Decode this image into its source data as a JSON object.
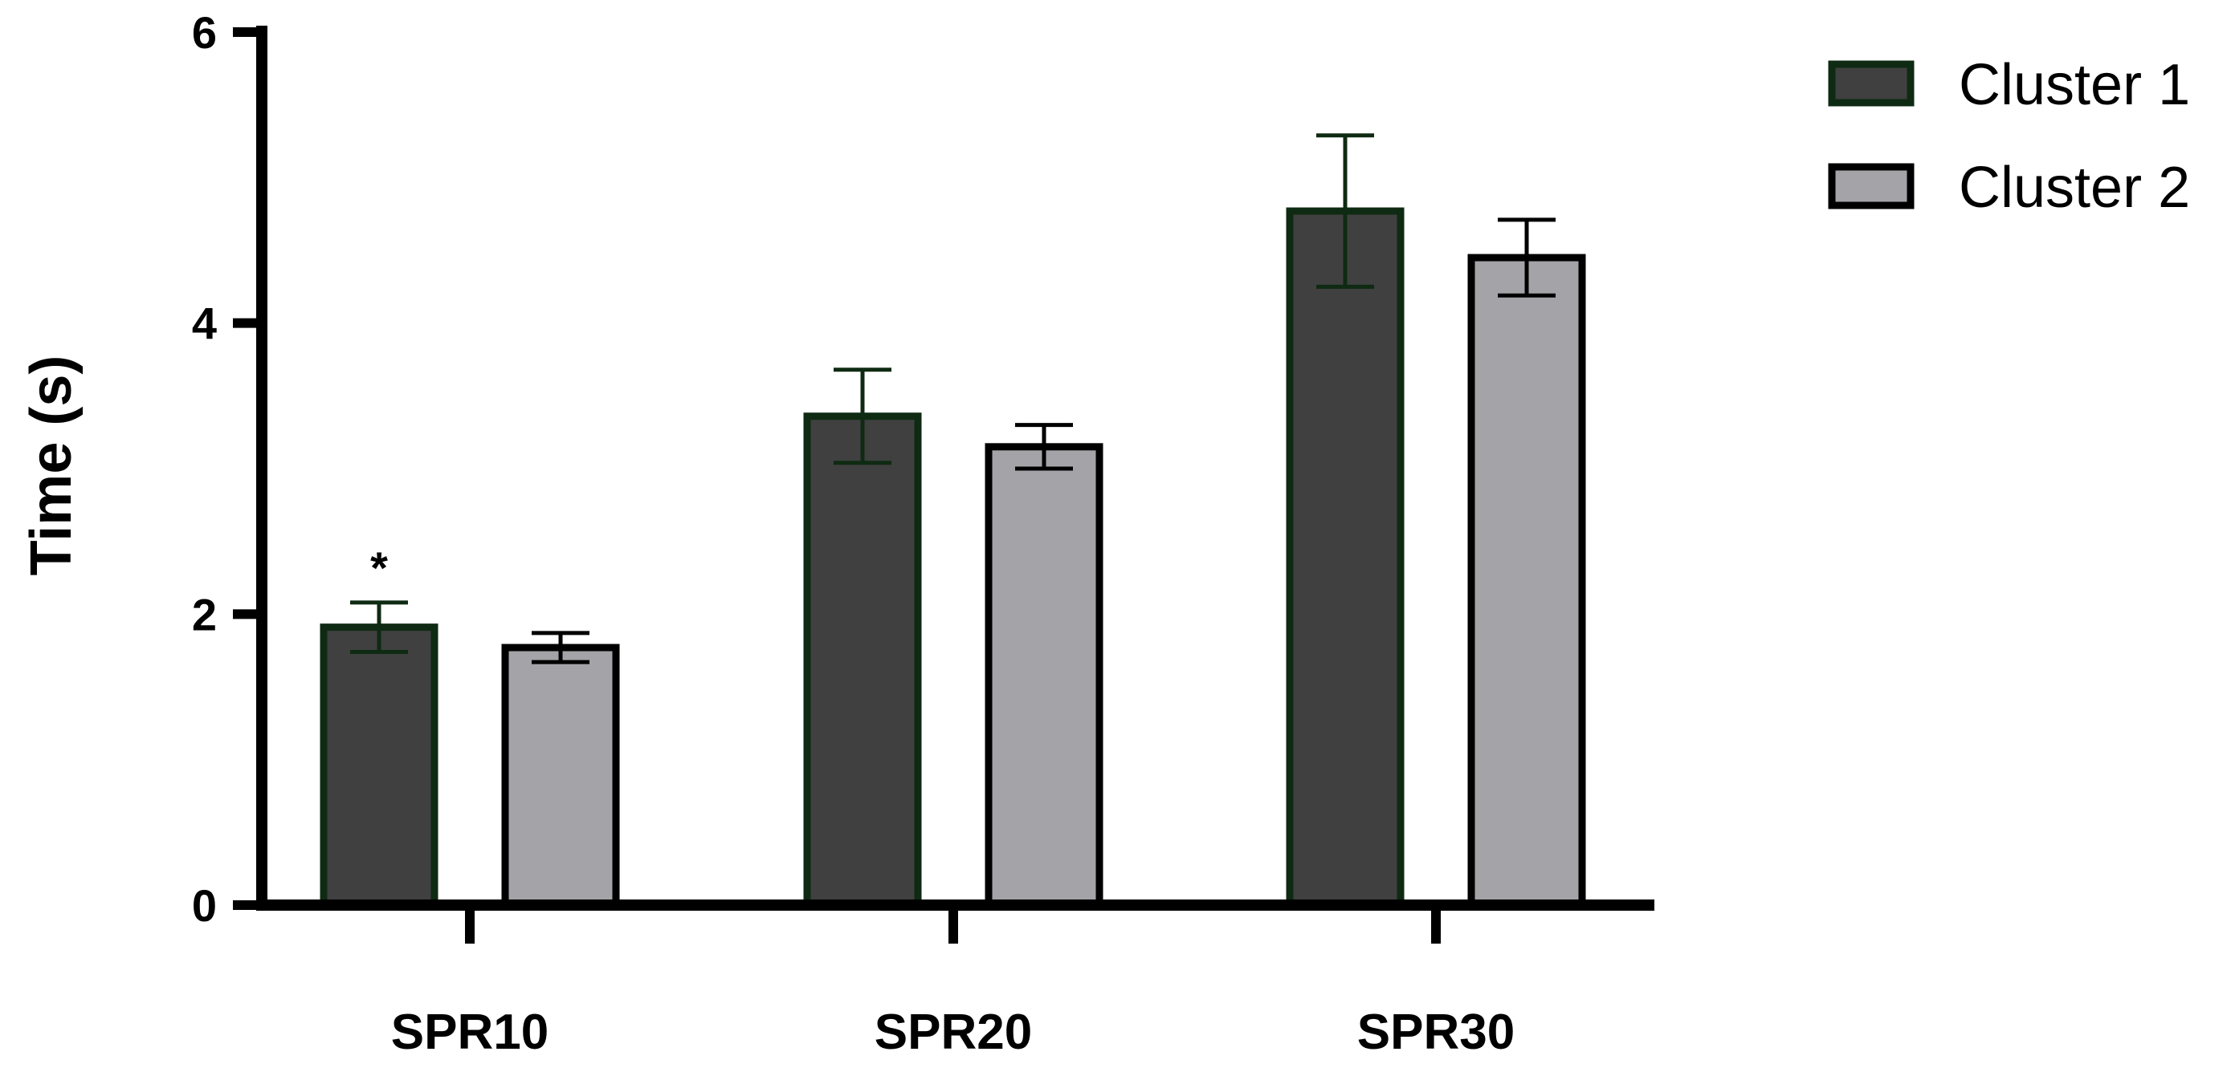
{
  "chart_data": {
    "type": "bar",
    "title": "",
    "xlabel": "",
    "ylabel": "Time (s)",
    "ylim": [
      0,
      6
    ],
    "yticks": [
      "0",
      "2",
      "4",
      "6"
    ],
    "categories": [
      "SPR10",
      "SPR20",
      "SPR30"
    ],
    "series": [
      {
        "name": "Cluster 1",
        "color": "#404040",
        "edge_color": "#0f2a12",
        "values": [
          1.91,
          3.36,
          4.77
        ],
        "errors": [
          0.17,
          0.32,
          0.52
        ]
      },
      {
        "name": "Cluster 2",
        "color": "#a4a3a8",
        "edge_color": "#000000",
        "values": [
          1.77,
          3.15,
          4.45
        ],
        "errors": [
          0.1,
          0.15,
          0.26
        ]
      }
    ],
    "annotations": [
      {
        "text": "*",
        "category": "SPR10",
        "series": "Cluster 1"
      }
    ],
    "legend_position": "top-right",
    "grid": false
  }
}
